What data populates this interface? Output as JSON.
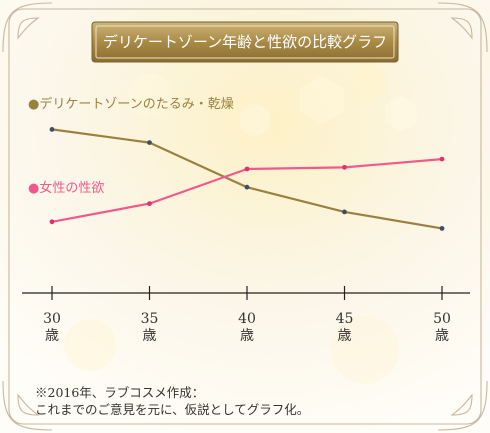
{
  "chart_data": {
    "type": "line",
    "title": "デリケートゾーン年齢と性欲の比較グラフ",
    "categories": [
      {
        "age": "30",
        "unit": "歳"
      },
      {
        "age": "35",
        "unit": "歳"
      },
      {
        "age": "40",
        "unit": "歳"
      },
      {
        "age": "45",
        "unit": "歳"
      },
      {
        "age": "50",
        "unit": "歳"
      }
    ],
    "series": [
      {
        "name": "●デリケートゾーンのたるみ・乾燥",
        "color": "#9a8140",
        "values": [
          84,
          76,
          49,
          34,
          24
        ]
      },
      {
        "name": "●女性の性欲",
        "color": "#f2588c",
        "values": [
          28,
          39,
          60,
          61,
          66
        ]
      }
    ],
    "ylim": [
      0,
      100
    ],
    "grid": false,
    "legend": "top-left",
    "notes": [
      "※2016年、ラブコスメ作成：",
      "これまでのご意見を元に、仮説としてグラフ化。"
    ]
  }
}
